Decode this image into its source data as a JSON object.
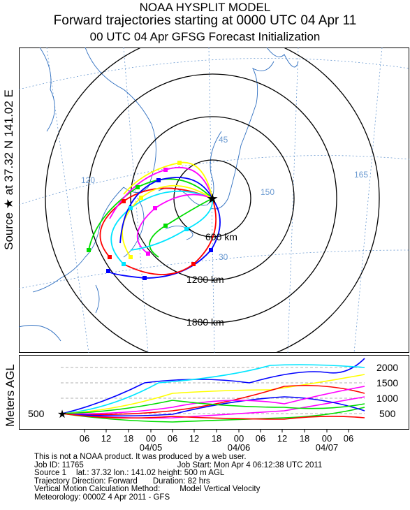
{
  "header": {
    "line1": "NOAA HYSPLIT MODEL",
    "line2": "Forward trajectories starting at 0000 UTC 04 Apr 11",
    "line3": "00 UTC 04 Apr    GFSG  Forecast Initialization"
  },
  "side_label": "Source ★ at   37.32 N  141.02 E",
  "map": {
    "ring_labels": [
      "600 km",
      "1200 km",
      "1800 km"
    ],
    "grid_labels": [
      "45",
      "120",
      "150",
      "30",
      "165"
    ],
    "colors": {
      "ring": "#000000",
      "coast": "#2f6fc0",
      "grid": "#6b9ad1",
      "source": "#000000"
    }
  },
  "profile": {
    "axis_label": "Meters AGL",
    "y_ticks": [
      "2000",
      "1500",
      "1000",
      "500"
    ],
    "start_label": "500",
    "x_ticks": [
      "06",
      "12",
      "18",
      "00",
      "06",
      "12",
      "18",
      "00",
      "06",
      "12",
      "18",
      "00",
      "06"
    ],
    "date_labels": [
      "04/05",
      "04/06",
      "04/07"
    ]
  },
  "info": {
    "line1": "This is not a NOAA product. It was produced by a web user.",
    "line2a": "Job ID: 11765",
    "line2b": "Job Start: Mon Apr  4 06:12:38 UTC 2011",
    "line3a": "Source 1",
    "line3b": "lat.: 37.32    lon.: 141.02     height: 500 m AGL",
    "line4a": "Trajectory Direction: Forward",
    "line4b": "Duration: 82 hrs",
    "line5a": "Vertical Motion Calculation Method:",
    "line5b": "Model Vertical Velocity",
    "line6": "Meteorology: 0000Z  4 Apr 2011 - GFS"
  },
  "series_colors": [
    "#ff0000",
    "#0000ff",
    "#00dd00",
    "#00e5ff",
    "#ff00ff",
    "#ffff00"
  ]
}
